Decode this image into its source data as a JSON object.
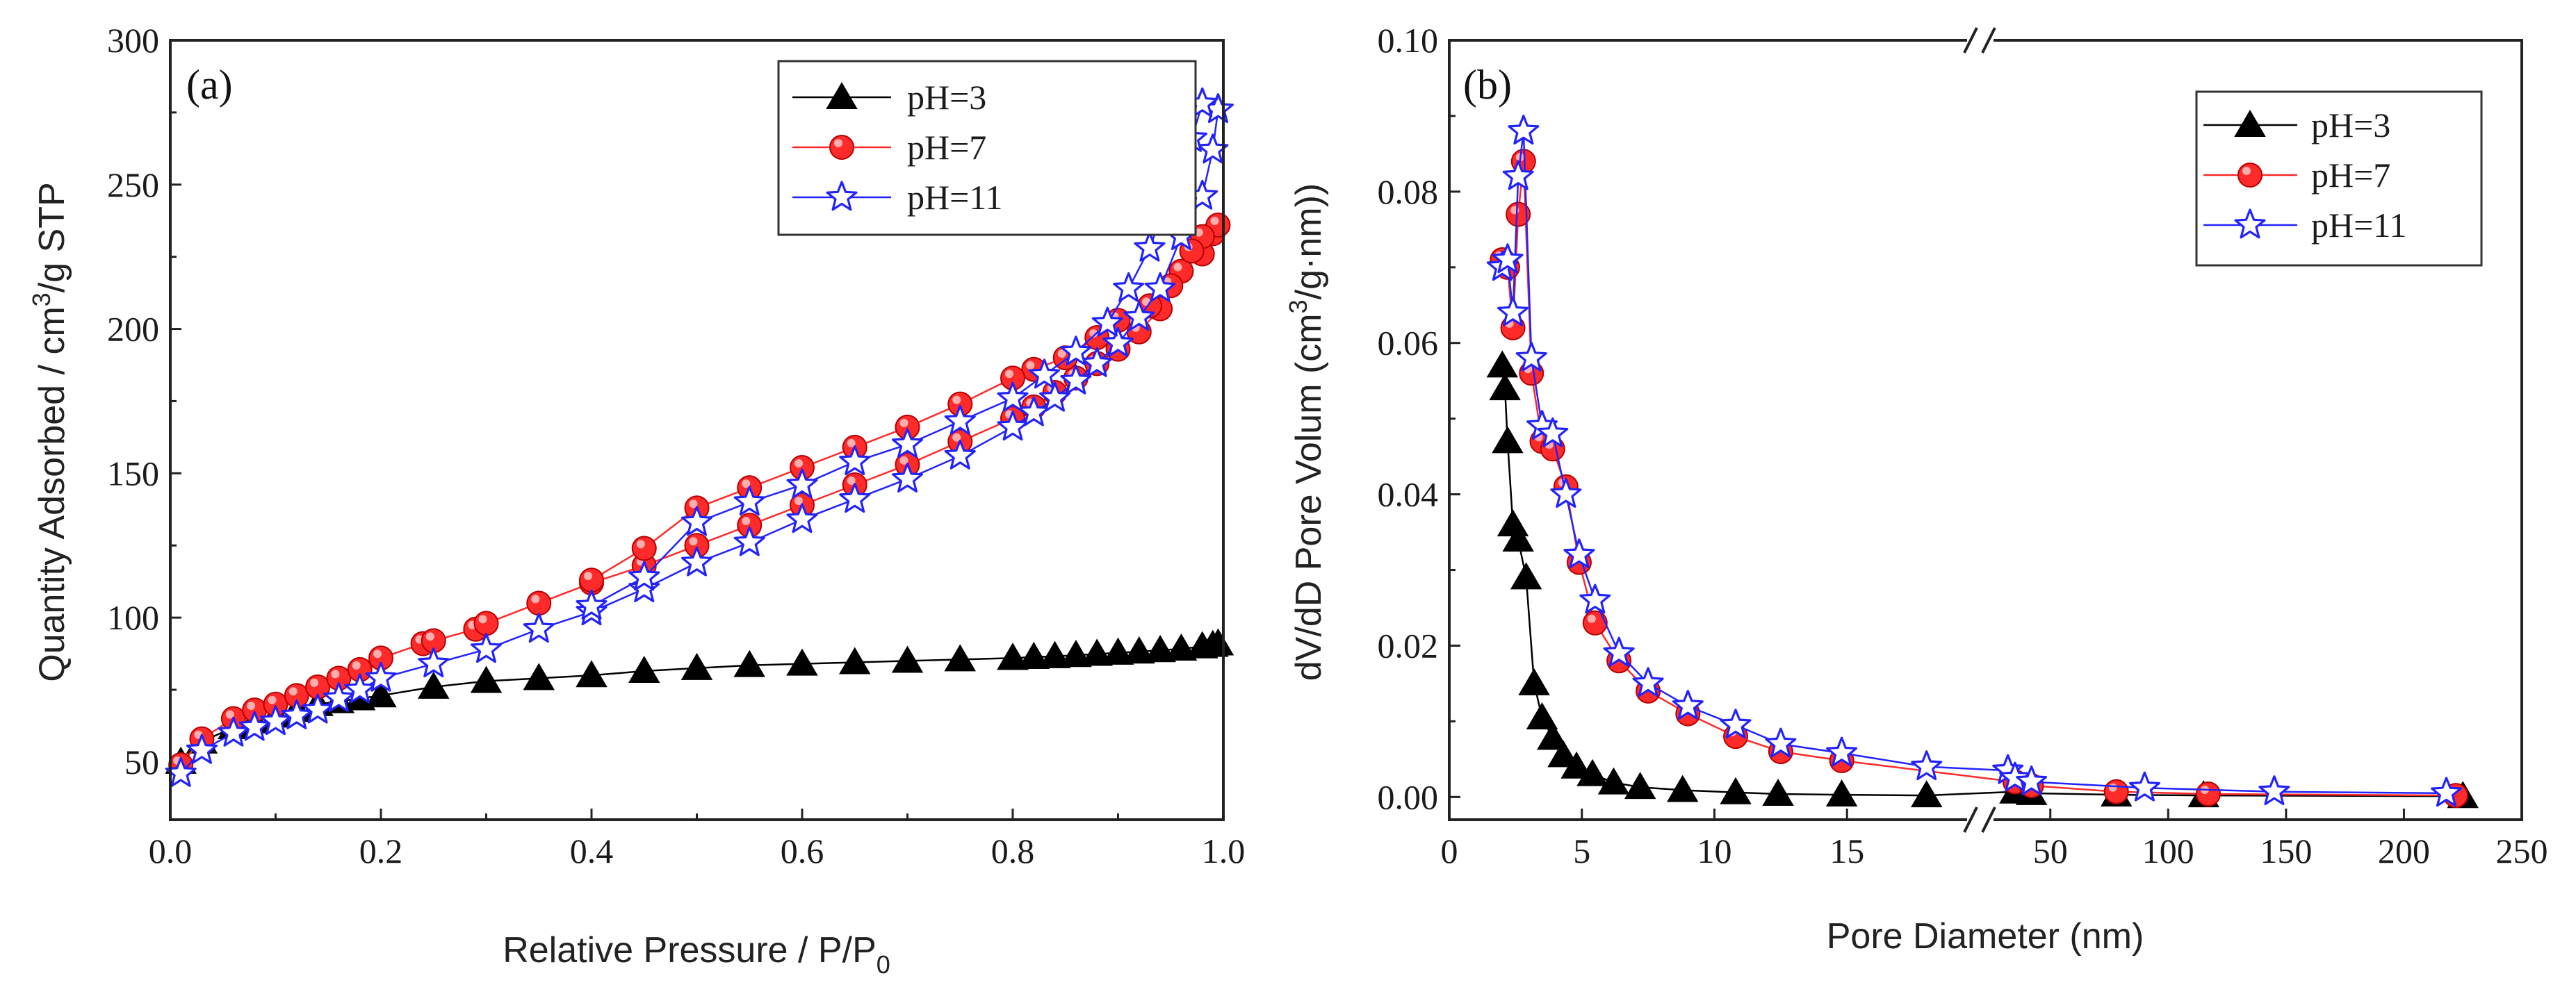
{
  "chart_data": [
    {
      "type": "line",
      "panel_label": "(a)",
      "title": "",
      "xlabel_main": "Relative Pressure / P/P",
      "xlabel_sub": "0",
      "ylabel_prefix": "Quantity Adsorbed / cm",
      "ylabel_sup": "3",
      "ylabel_suffix": "/g STP",
      "xlim": [
        0.0,
        1.0
      ],
      "ylim": [
        30,
        300
      ],
      "xticks": [
        "0.0",
        "0.2",
        "0.4",
        "0.6",
        "0.8",
        "1.0"
      ],
      "yticks": [
        "50",
        "100",
        "150",
        "200",
        "250",
        "300"
      ],
      "legend_position": "top-right",
      "series": [
        {
          "name": "pH=3",
          "color": "#000000",
          "marker": "triangle",
          "fill": "#000000",
          "x": [
            0.01,
            0.03,
            0.06,
            0.08,
            0.1,
            0.12,
            0.14,
            0.16,
            0.18,
            0.2,
            0.25,
            0.3,
            0.35,
            0.4,
            0.45,
            0.5,
            0.55,
            0.6,
            0.65,
            0.7,
            0.75,
            0.8,
            0.82,
            0.84,
            0.86,
            0.88,
            0.9,
            0.92,
            0.94,
            0.96,
            0.98,
            0.99,
            0.995,
            0.98,
            0.96,
            0.94,
            0.92,
            0.9,
            0.88,
            0.86,
            0.84,
            0.82,
            0.8
          ],
          "y": [
            50,
            57,
            62,
            64,
            66,
            68,
            70,
            71,
            72,
            73,
            76,
            78,
            79,
            80,
            81.5,
            82.5,
            83.5,
            84,
            84.5,
            85,
            85.5,
            86,
            86.3,
            86.6,
            87,
            87.4,
            87.8,
            88.2,
            88.7,
            89.2,
            90,
            90.5,
            91,
            90,
            89.2,
            88.7,
            88.2,
            87.8,
            87.4,
            87,
            86.6,
            86.3,
            86
          ]
        },
        {
          "name": "pH=7",
          "color": "#ff2a2a",
          "marker": "circle",
          "fill": "#ff2a2a",
          "x": [
            0.01,
            0.03,
            0.06,
            0.08,
            0.1,
            0.12,
            0.14,
            0.16,
            0.18,
            0.2,
            0.24,
            0.25,
            0.29,
            0.3,
            0.35,
            0.4,
            0.45,
            0.5,
            0.55,
            0.6,
            0.65,
            0.7,
            0.75,
            0.8,
            0.82,
            0.84,
            0.86,
            0.88,
            0.9,
            0.92,
            0.94,
            0.96,
            0.98,
            0.99,
            0.995,
            0.98,
            0.97,
            0.95,
            0.93,
            0.9,
            0.88,
            0.85,
            0.82,
            0.8,
            0.75,
            0.7,
            0.65,
            0.6,
            0.55,
            0.5,
            0.45,
            0.4
          ],
          "y": [
            49,
            58,
            65,
            68,
            70,
            73,
            76,
            79,
            82,
            86,
            91,
            92,
            96,
            98,
            105,
            112,
            118,
            125,
            132,
            139,
            146,
            153,
            161,
            169,
            173,
            178,
            183,
            188,
            193,
            199,
            207,
            220,
            226,
            233,
            236,
            232,
            227,
            215,
            208,
            203,
            197,
            190,
            186,
            183,
            174,
            166,
            159,
            152,
            145,
            138,
            124,
            113
          ]
        },
        {
          "name": "pH=11",
          "color": "#2222ff",
          "marker": "star",
          "fill": "#ffffff",
          "x": [
            0.01,
            0.03,
            0.06,
            0.08,
            0.1,
            0.12,
            0.14,
            0.16,
            0.18,
            0.2,
            0.25,
            0.3,
            0.35,
            0.4,
            0.45,
            0.5,
            0.55,
            0.6,
            0.65,
            0.7,
            0.75,
            0.8,
            0.82,
            0.84,
            0.86,
            0.88,
            0.9,
            0.92,
            0.94,
            0.96,
            0.98,
            0.99,
            0.995,
            0.98,
            0.97,
            0.95,
            0.93,
            0.91,
            0.89,
            0.86,
            0.83,
            0.8,
            0.75,
            0.7,
            0.65,
            0.6,
            0.55,
            0.5,
            0.45,
            0.4
          ],
          "y": [
            46,
            54,
            60,
            62,
            64,
            66,
            68,
            72,
            75,
            79,
            84,
            89,
            96,
            102,
            110,
            119,
            126,
            134,
            141,
            148,
            156,
            166,
            171,
            176,
            182,
            188,
            195,
            204,
            214,
            232,
            246,
            262,
            276,
            278,
            266,
            248,
            228,
            214,
            202,
            192,
            184,
            176,
            168,
            160,
            154,
            146,
            140,
            133,
            114,
            104
          ]
        }
      ],
      "legend": [
        {
          "label": "pH=3"
        },
        {
          "label": "pH=7"
        },
        {
          "label": "pH=11"
        }
      ]
    },
    {
      "type": "line",
      "panel_label": "(b)",
      "title": "",
      "xlabel": "Pore Diameter (nm)",
      "ylabel_prefix": "dV/dD Pore Volum (cm",
      "ylabel_sup": "3",
      "ylabel_suffix": "/g·nm))",
      "ylim": [
        -0.003,
        0.1
      ],
      "yticks": [
        "0.00",
        "0.02",
        "0.04",
        "0.06",
        "0.08",
        "0.10"
      ],
      "x_broken_axis": true,
      "x_left_segment": {
        "xlim": [
          0,
          20
        ],
        "ticks": [
          "0",
          "5",
          "10",
          "15"
        ]
      },
      "x_right_segment": {
        "xlim": [
          20,
          250
        ],
        "ticks": [
          "50",
          "100",
          "150",
          "200",
          "250"
        ]
      },
      "legend_position": "top-right",
      "series": [
        {
          "name": "pH=3",
          "color": "#000000",
          "marker": "triangle",
          "fill": "#000000",
          "x": [
            2.0,
            2.1,
            2.2,
            2.4,
            2.6,
            2.9,
            3.2,
            3.5,
            3.9,
            4.3,
            4.8,
            5.4,
            6.2,
            7.2,
            8.8,
            10.8,
            12.4,
            14.8,
            18.0,
            35,
            42,
            78,
            115,
            225
          ],
          "y": [
            0.057,
            0.054,
            0.047,
            0.036,
            0.034,
            0.029,
            0.015,
            0.0105,
            0.0078,
            0.0055,
            0.004,
            0.003,
            0.0019,
            0.0013,
            0.0009,
            0.0006,
            0.0004,
            0.0003,
            0.0002,
            0.0007,
            0.0005,
            0.0003,
            0.0002,
            0.0001
          ]
        },
        {
          "name": "pH=7",
          "color": "#ff2a2a",
          "marker": "circle",
          "fill": "#ff2a2a",
          "x": [
            2.0,
            2.2,
            2.4,
            2.6,
            2.8,
            3.1,
            3.5,
            3.9,
            4.4,
            4.9,
            5.5,
            6.4,
            7.5,
            9.0,
            10.8,
            12.5,
            14.8,
            35,
            42,
            78,
            117,
            222
          ],
          "y": [
            0.071,
            0.07,
            0.062,
            0.077,
            0.084,
            0.056,
            0.047,
            0.046,
            0.041,
            0.031,
            0.023,
            0.018,
            0.014,
            0.011,
            0.008,
            0.006,
            0.0048,
            0.002,
            0.0015,
            0.0007,
            0.0004,
            0.0002
          ]
        },
        {
          "name": "pH=11",
          "color": "#2222ff",
          "marker": "star",
          "fill": "#ffffff",
          "x": [
            2.0,
            2.2,
            2.4,
            2.6,
            2.8,
            3.1,
            3.5,
            3.9,
            4.4,
            4.9,
            5.5,
            6.4,
            7.5,
            9.0,
            10.8,
            12.5,
            14.8,
            18.0,
            32,
            35,
            42,
            90,
            145,
            218
          ],
          "y": [
            0.07,
            0.071,
            0.064,
            0.082,
            0.088,
            0.058,
            0.049,
            0.048,
            0.04,
            0.032,
            0.026,
            0.019,
            0.015,
            0.012,
            0.0095,
            0.007,
            0.0058,
            0.004,
            0.0035,
            0.0025,
            0.002,
            0.0012,
            0.0007,
            0.0005
          ]
        }
      ],
      "legend": [
        {
          "label": "pH=3"
        },
        {
          "label": "pH=7"
        },
        {
          "label": "pH=11"
        }
      ]
    }
  ]
}
